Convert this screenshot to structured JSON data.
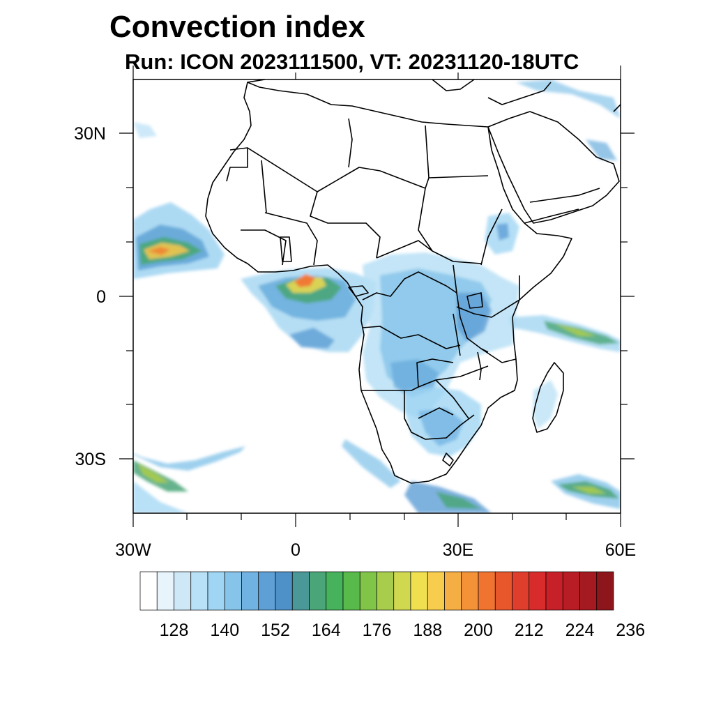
{
  "title": "Convection index",
  "subtitle": "Run: ICON 2023111500,  VT: 20231120-18UTC",
  "axes": {
    "lat_labels": [
      "30N",
      "0",
      "30S"
    ],
    "lon_labels": [
      "30W",
      "0",
      "30E",
      "60E"
    ]
  },
  "colorbar": {
    "colors": [
      "#ffffff",
      "#e8f4fc",
      "#cfe8f8",
      "#b8e0f6",
      "#a0d6f4",
      "#86c4ea",
      "#70b2e2",
      "#5e9fd6",
      "#4e90c8",
      "#4a9898",
      "#4aa678",
      "#46b25c",
      "#58ba4a",
      "#80c448",
      "#a8cc4c",
      "#d0d850",
      "#f0e050",
      "#f8cc4c",
      "#f4ae44",
      "#f49238",
      "#f07430",
      "#e8562c",
      "#e03e2c",
      "#d82c2c",
      "#c82028",
      "#b81c24",
      "#a41a20",
      "#8c161c"
    ],
    "labels": [
      "128",
      "140",
      "152",
      "164",
      "176",
      "188",
      "200",
      "212",
      "224",
      "236"
    ]
  }
}
